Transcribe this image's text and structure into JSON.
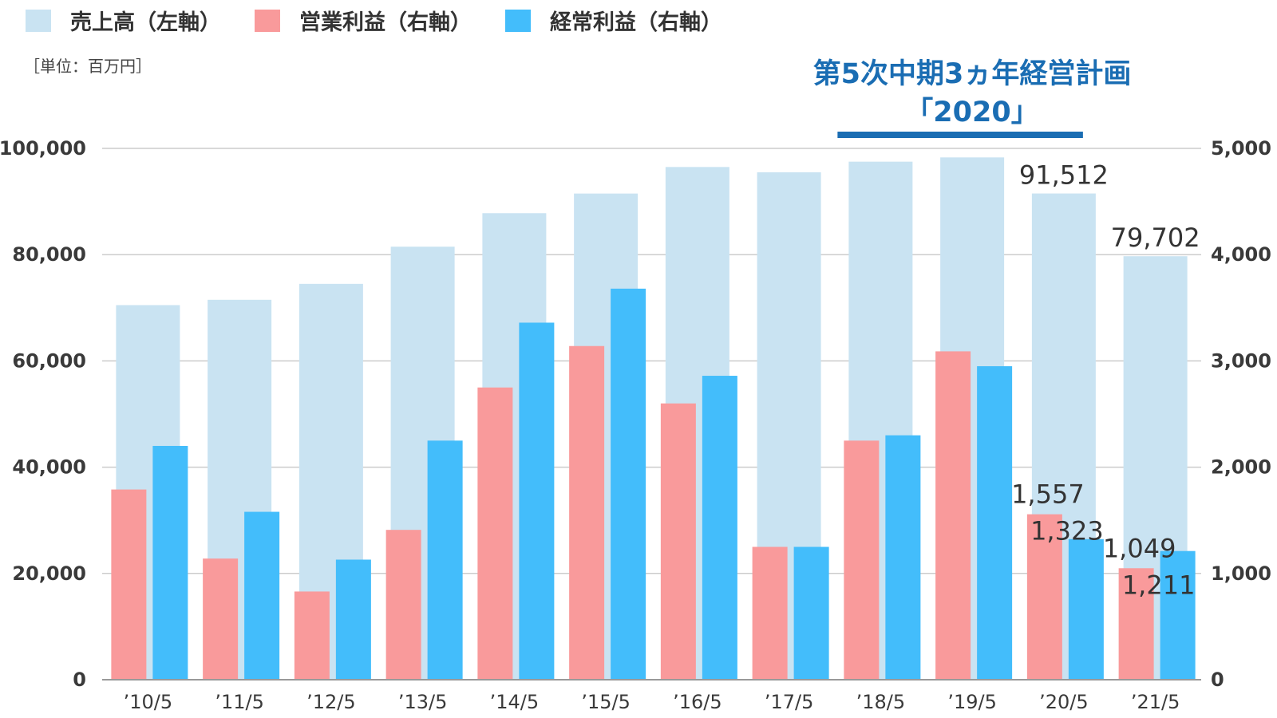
{
  "chart_data": {
    "type": "bar",
    "unit": "［単位：百万円］",
    "categories": [
      "’10/5",
      "’11/5",
      "’12/5",
      "’13/5",
      "’14/5",
      "’15/5",
      "’16/5",
      "’17/5",
      "’18/5",
      "’19/5",
      "’20/5",
      "’21/5"
    ],
    "series": [
      {
        "name": "売上高（左軸）",
        "axis": "left",
        "color": "#c9e3f2",
        "values": [
          70500,
          71500,
          74500,
          81500,
          87800,
          91500,
          96500,
          95500,
          97500,
          98300,
          91512,
          79702
        ]
      },
      {
        "name": "営業利益（右軸）",
        "axis": "right",
        "color": "#f99a9b",
        "values": [
          1790,
          1140,
          830,
          1410,
          2750,
          3140,
          2600,
          1250,
          2250,
          3090,
          1557,
          1049
        ]
      },
      {
        "name": "経常利益（右軸）",
        "axis": "right",
        "color": "#43bdfb",
        "values": [
          2200,
          1580,
          1130,
          2250,
          3360,
          3680,
          2860,
          1250,
          2300,
          2950,
          1323,
          1211
        ]
      }
    ],
    "left_axis": {
      "min": 0,
      "max": 100000,
      "ticks": [
        "0",
        "20,000",
        "40,000",
        "60,000",
        "80,000",
        "100,000"
      ]
    },
    "right_axis": {
      "min": 0,
      "max": 5000,
      "ticks": [
        "0",
        "1,000",
        "2,000",
        "3,000",
        "4,000",
        "5,000"
      ]
    },
    "grid": true,
    "legend_position": "top-left",
    "data_labels": [
      {
        "series": 0,
        "index": 10,
        "text": "91,512"
      },
      {
        "series": 0,
        "index": 11,
        "text": "79,702"
      },
      {
        "series": 1,
        "index": 10,
        "text": "1,557"
      },
      {
        "series": 2,
        "index": 10,
        "text": "1,323"
      },
      {
        "series": 1,
        "index": 11,
        "text": "1,049"
      },
      {
        "series": 2,
        "index": 11,
        "text": "1,211"
      }
    ],
    "annotation": {
      "line1": "第5次中期3ヵ年経営計画",
      "line2": "「2020」",
      "color": "#1a6db3",
      "span_categories": [
        8,
        10
      ]
    }
  }
}
